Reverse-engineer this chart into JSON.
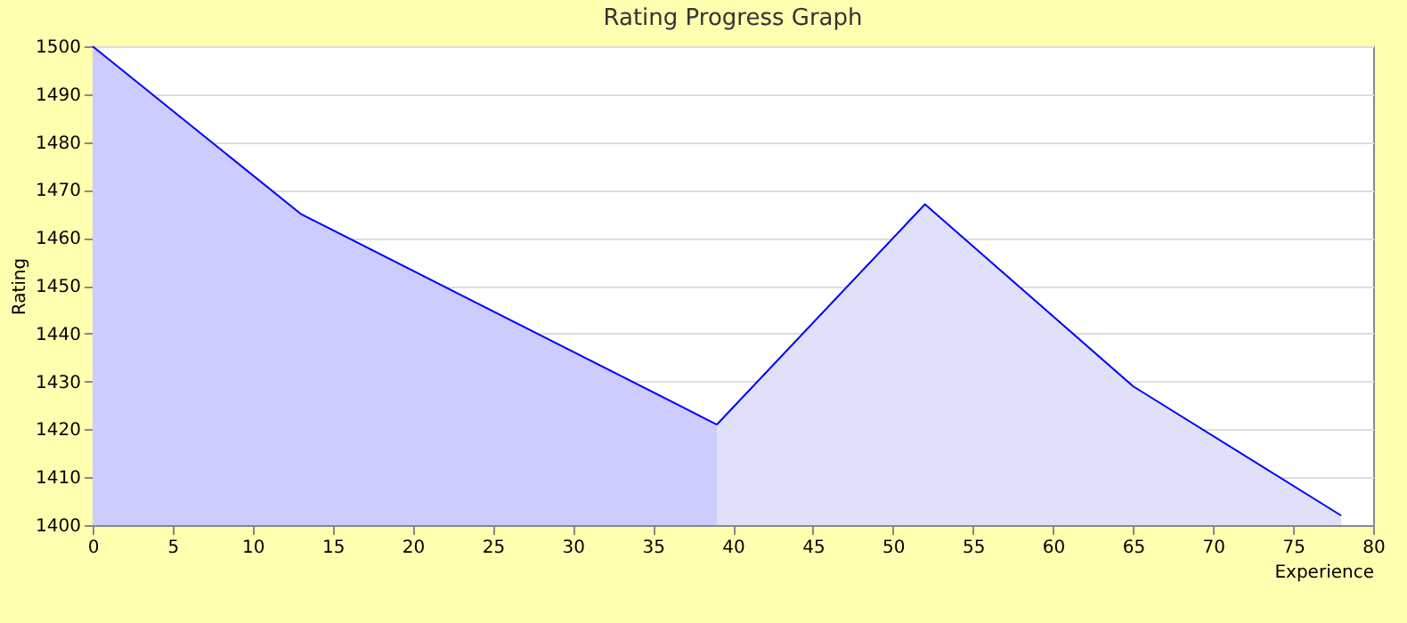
{
  "chart_data": {
    "type": "area",
    "title": "Rating Progress Graph",
    "xlabel": "Experience",
    "ylabel": "Rating",
    "series": [
      {
        "color": "#ccccff",
        "x": [
          0,
          13,
          39
        ],
        "values": [
          1500,
          1465,
          1421
        ]
      },
      {
        "color": "#e0e0fa",
        "x": [
          39,
          52,
          65,
          78
        ],
        "values": [
          1421,
          1467,
          1429,
          1402
        ]
      }
    ],
    "xlim": [
      0,
      80
    ],
    "xticks": [
      0,
      5,
      10,
      15,
      20,
      25,
      30,
      35,
      40,
      45,
      50,
      55,
      60,
      65,
      70,
      75,
      80
    ],
    "ylim": [
      1400,
      1500
    ],
    "yticks": [
      1400,
      1410,
      1420,
      1430,
      1440,
      1450,
      1460,
      1470,
      1480,
      1490,
      1500
    ],
    "grid": "y"
  }
}
